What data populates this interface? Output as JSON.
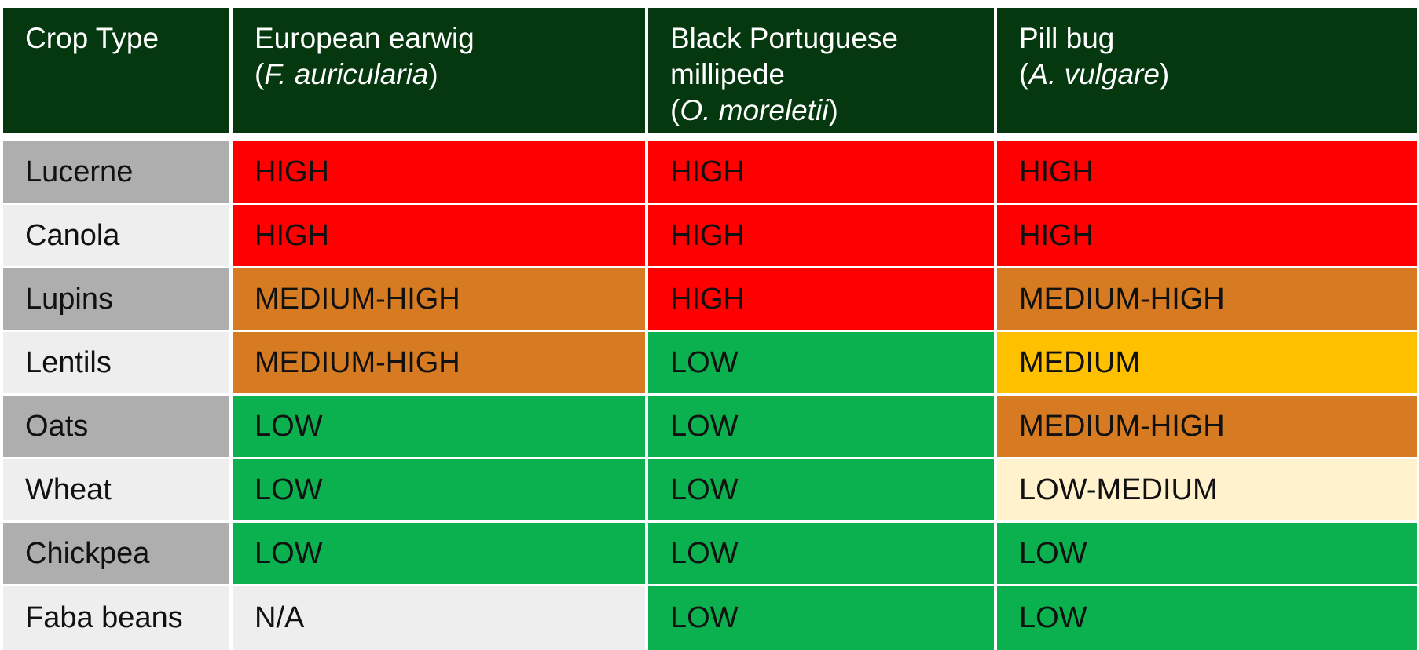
{
  "table": {
    "header": {
      "crop": "Crop Type",
      "pests": [
        {
          "common": [
            "European earwig"
          ],
          "sci": "F. auricularia"
        },
        {
          "common": [
            "Black Portuguese",
            "millipede"
          ],
          "sci": "O. moreletii"
        },
        {
          "common": [
            "Pill bug"
          ],
          "sci": "A. vulgare"
        }
      ]
    },
    "rows": [
      {
        "crop": "Lucerne",
        "values": [
          "HIGH",
          "HIGH",
          "HIGH"
        ]
      },
      {
        "crop": "Canola",
        "values": [
          "HIGH",
          "HIGH",
          "HIGH"
        ]
      },
      {
        "crop": "Lupins",
        "values": [
          "MEDIUM-HIGH",
          "HIGH",
          "MEDIUM-HIGH"
        ]
      },
      {
        "crop": "Lentils",
        "values": [
          "MEDIUM-HIGH",
          "LOW",
          "MEDIUM"
        ]
      },
      {
        "crop": "Oats",
        "values": [
          "LOW",
          "LOW",
          "MEDIUM-HIGH"
        ]
      },
      {
        "crop": "Wheat",
        "values": [
          "LOW",
          "LOW",
          "LOW-MEDIUM"
        ]
      },
      {
        "crop": "Chickpea",
        "values": [
          "LOW",
          "LOW",
          "LOW"
        ]
      },
      {
        "crop": "Faba beans",
        "values": [
          "N/A",
          "LOW",
          "LOW"
        ]
      }
    ]
  },
  "colors": {
    "header_bg": "#05380f",
    "crop_dark": "#aeaeae",
    "crop_light": "#eeeeee",
    "HIGH": "#ff0000",
    "MEDIUM-HIGH": "#d77b22",
    "MEDIUM": "#ffc000",
    "LOW-MEDIUM": "#fff2cc",
    "LOW": "#0ab14e",
    "N/A": "#eeeeee"
  }
}
